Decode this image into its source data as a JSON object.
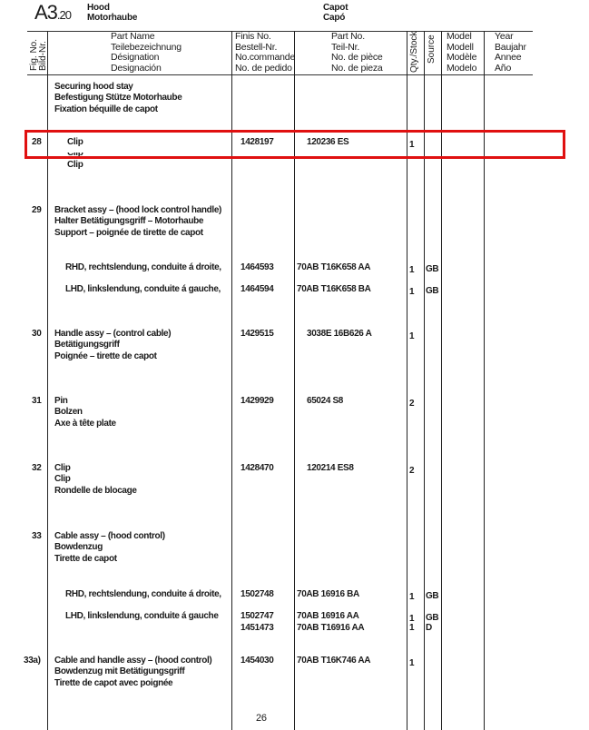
{
  "header": {
    "section_code": "A3",
    "section_sub": ".20",
    "title_en": "Hood",
    "title_de": "Motorhaube",
    "title_fr": "Capot",
    "title_es": "Capó"
  },
  "columns": {
    "fig_no": [
      "Fig. No.",
      "Bild-Nr."
    ],
    "part_name": [
      "Part Name",
      "Teilebezeichnung",
      "Désignation",
      "Designación"
    ],
    "finis_no": [
      "Finis No.",
      "Bestell-Nr.",
      "No.commande",
      "No. de pedido"
    ],
    "part_no": [
      "Part No.",
      "Teil-Nr.",
      "No. de pièce",
      "No. de pieza"
    ],
    "qty": "Qty./Stock",
    "source": "Source",
    "model": [
      "Model",
      "Modell",
      "Modèle",
      "Modelo"
    ],
    "year": [
      "Year",
      "Baujahr",
      "Annee",
      "Año"
    ]
  },
  "rows": [
    {
      "fig": "",
      "name": [
        "Securing hood stay",
        "Befestigung Stütze Motorhaube",
        "Fixation béquille de capot"
      ],
      "finis": "",
      "part": "",
      "qty": "",
      "source": ""
    },
    {
      "fig": "28",
      "name": [
        "Clip"
      ],
      "finis": "1428197",
      "part": "120236 ES",
      "qty": "1",
      "source": "",
      "highlighted": true
    },
    {
      "fig": "",
      "name": [
        "Clip"
      ],
      "finis": "",
      "part": "",
      "qty": "",
      "source": ""
    },
    {
      "fig": "29",
      "name": [
        "Bracket assy – (hood lock control handle)",
        "Halter Betätigungsgriff – Motorhaube",
        "Support – poignée de tirette de capot"
      ],
      "finis": "",
      "part": "",
      "qty": "",
      "source": ""
    },
    {
      "fig": "",
      "name": [
        "RHD, rechtslendung, conduite á droite,"
      ],
      "finis": "1464593",
      "part": "70AB T16K658 AA",
      "qty": "1",
      "source": "GB"
    },
    {
      "fig": "",
      "name": [
        "LHD, linkslendung, conduite á gauche,"
      ],
      "finis": "1464594",
      "part": "70AB T16K658 BA",
      "qty": "1",
      "source": "GB"
    },
    {
      "fig": "30",
      "name": [
        "Handle assy – (control cable)",
        "Betätigungsgriff",
        "Poignée – tirette de capot"
      ],
      "finis": "1429515",
      "part": "3038E 16B626 A",
      "qty": "1",
      "source": ""
    },
    {
      "fig": "31",
      "name": [
        "Pin",
        "Bolzen",
        "Axe à tête plate"
      ],
      "finis": "1429929",
      "part": "65024 S8",
      "qty": "2",
      "source": ""
    },
    {
      "fig": "32",
      "name": [
        "Clip",
        "Clip",
        "Rondelle de blocage"
      ],
      "finis": "1428470",
      "part": "120214 ES8",
      "qty": "2",
      "source": ""
    },
    {
      "fig": "33",
      "name": [
        "Cable assy – (hood control)",
        "Bowdenzug",
        "Tirette de capot"
      ],
      "finis": "",
      "part": "",
      "qty": "",
      "source": ""
    },
    {
      "fig": "",
      "name": [
        "RHD, rechtslendung, conduite á droite,"
      ],
      "finis": "1502748",
      "part": "70AB 16916 BA",
      "qty": "1",
      "source": "GB"
    },
    {
      "fig": "",
      "name": [
        "LHD, linkslendung, conduite á gauche"
      ],
      "finis": "1502747",
      "part": "70AB 16916 AA",
      "qty": "1",
      "source": "GB"
    },
    {
      "fig": "",
      "name": [],
      "finis": "1451473",
      "part": "70AB T16916 AA",
      "qty": "1",
      "source": "D"
    },
    {
      "fig": "33a)",
      "name": [
        "Cable and handle assy – (hood control)",
        "Bowdenzug mit Betätigungsgriff",
        "Tirette de capot avec poignée"
      ],
      "finis": "1454030",
      "part": "70AB T16K746 AA",
      "qty": "1",
      "source": ""
    }
  ],
  "highlight_color": "#e01010",
  "page_number": "26"
}
